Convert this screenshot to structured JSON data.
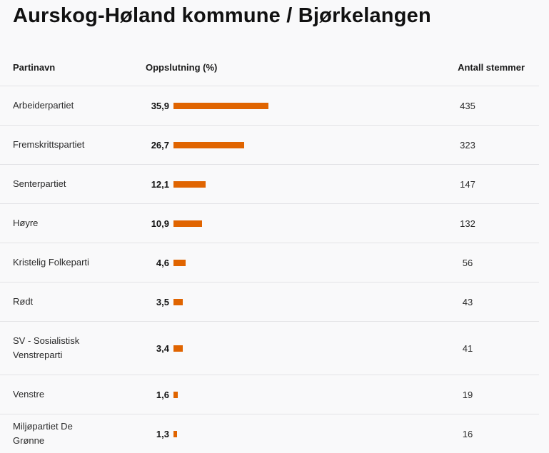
{
  "page": {
    "title": "Aurskog-Høland kommune / Bjørkelangen"
  },
  "table": {
    "headers": {
      "party": "Partinavn",
      "share": "Oppslutning (%)",
      "votes": "Antall stemmer"
    },
    "rows": [
      {
        "party": "Arbeiderpartiet",
        "share": "35,9",
        "share_value": 35.9,
        "votes": "435"
      },
      {
        "party": "Fremskrittspartiet",
        "share": "26,7",
        "share_value": 26.7,
        "votes": "323"
      },
      {
        "party": "Senterpartiet",
        "share": "12,1",
        "share_value": 12.1,
        "votes": "147"
      },
      {
        "party": "Høyre",
        "share": "10,9",
        "share_value": 10.9,
        "votes": "132"
      },
      {
        "party": "Kristelig Folkeparti",
        "share": "4,6",
        "share_value": 4.6,
        "votes": "56"
      },
      {
        "party": "Rødt",
        "share": "3,5",
        "share_value": 3.5,
        "votes": "43"
      },
      {
        "party": "SV - Sosialistisk Venstreparti",
        "share": "3,4",
        "share_value": 3.4,
        "votes": "41"
      },
      {
        "party": "Venstre",
        "share": "1,6",
        "share_value": 1.6,
        "votes": "19"
      },
      {
        "party": "Miljøpartiet De Grønne",
        "share": "1,3",
        "share_value": 1.3,
        "votes": "16"
      }
    ]
  },
  "colors": {
    "bar": "#e06400",
    "background": "#f9f9fa",
    "divider": "#e3e3e6"
  }
}
